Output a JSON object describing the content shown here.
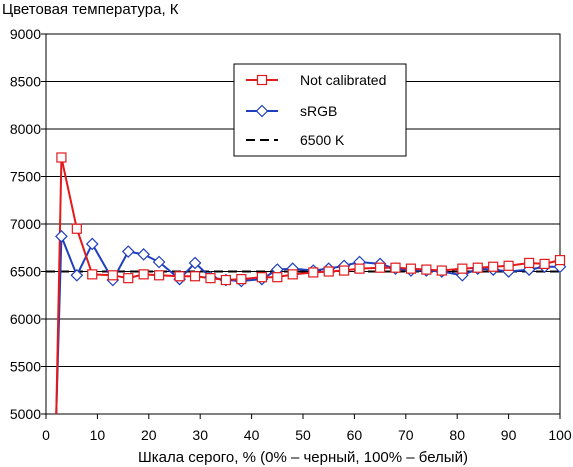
{
  "chart_data": {
    "type": "line",
    "title": "Цветовая температура, К",
    "xlabel": "Шкала серого, % (0% – черный, 100% – белый)",
    "ylabel": "",
    "xlim": [
      0,
      100
    ],
    "ylim": [
      5000,
      9000
    ],
    "xticks": [
      0,
      10,
      20,
      30,
      40,
      50,
      60,
      70,
      80,
      90,
      100
    ],
    "yticks": [
      5000,
      5500,
      6000,
      6500,
      7000,
      7500,
      8000,
      8500,
      9000
    ],
    "grid": "horizontal",
    "legend_position": "top-right",
    "series": [
      {
        "name": "Not calibrated",
        "color": "#e31a1c",
        "marker": "square",
        "x": [
          2,
          3,
          6,
          9,
          13,
          16,
          19,
          22,
          26,
          29,
          32,
          35,
          38,
          42,
          45,
          48,
          52,
          55,
          58,
          61,
          65,
          68,
          71,
          74,
          77,
          81,
          84,
          87,
          90,
          94,
          97,
          100
        ],
        "y": [
          5000,
          7700,
          6950,
          6470,
          6460,
          6430,
          6470,
          6460,
          6450,
          6450,
          6430,
          6410,
          6420,
          6440,
          6440,
          6470,
          6490,
          6500,
          6510,
          6530,
          6540,
          6540,
          6530,
          6520,
          6510,
          6530,
          6540,
          6550,
          6560,
          6590,
          6580,
          6620
        ]
      },
      {
        "name": "sRGB",
        "color": "#1f3fbf",
        "marker": "diamond",
        "x": [
          2,
          3,
          6,
          9,
          13,
          16,
          19,
          22,
          26,
          29,
          32,
          35,
          38,
          42,
          45,
          48,
          52,
          55,
          58,
          61,
          65,
          68,
          71,
          74,
          77,
          81,
          84,
          87,
          90,
          94,
          97,
          100
        ],
        "y": [
          5000,
          6870,
          6460,
          6790,
          6410,
          6710,
          6680,
          6600,
          6420,
          6590,
          6440,
          6410,
          6400,
          6420,
          6520,
          6530,
          6510,
          6530,
          6560,
          6600,
          6580,
          6530,
          6510,
          6510,
          6500,
          6460,
          6530,
          6520,
          6500,
          6520,
          6550,
          6550
        ]
      },
      {
        "name": "6500 K",
        "color": "#000000",
        "marker": "none",
        "dashed": true,
        "x": [
          0,
          100
        ],
        "y": [
          6500,
          6500
        ]
      }
    ]
  }
}
